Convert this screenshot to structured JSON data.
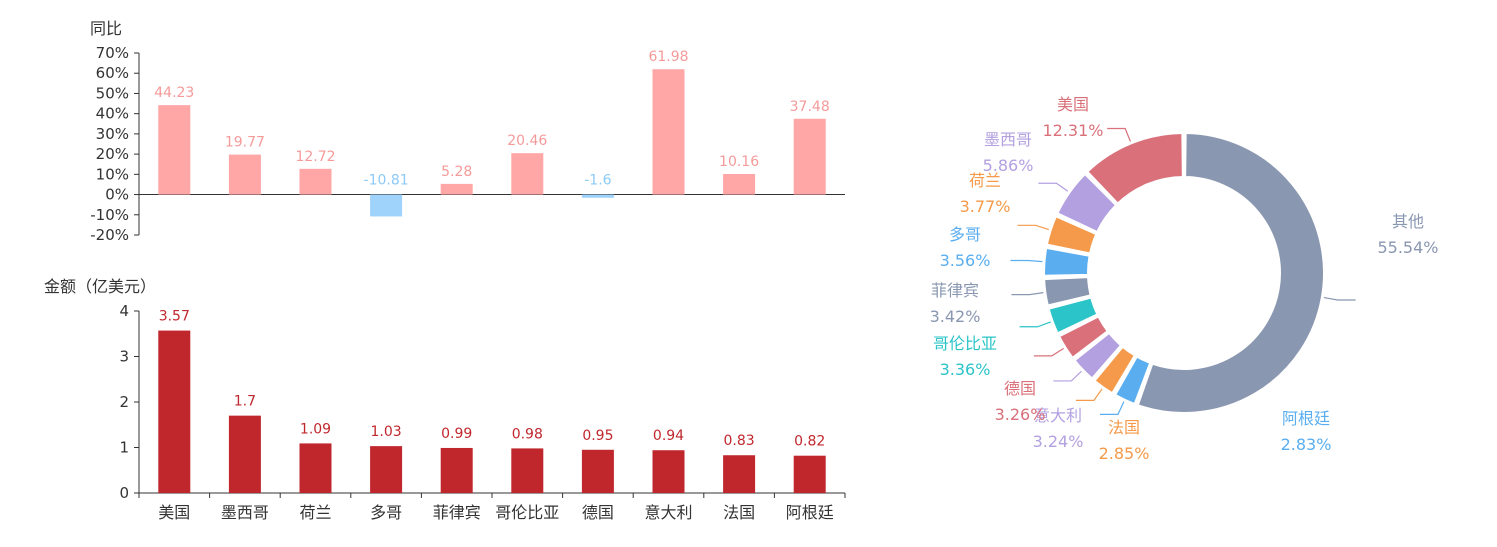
{
  "chart_data": [
    {
      "type": "bar",
      "ylabel": "同比",
      "y_tick_labels": [
        "70%",
        "60%",
        "50%",
        "40%",
        "30%",
        "20%",
        "10%",
        "0%",
        "-10%",
        "-20%"
      ],
      "ylim": [
        -20,
        70
      ],
      "categories": [
        "美国",
        "墨西哥",
        "荷兰",
        "多哥",
        "菲律宾",
        "哥伦比亚",
        "德国",
        "意大利",
        "法国",
        "阿根廷"
      ],
      "values": [
        44.23,
        19.77,
        12.72,
        -10.81,
        5.28,
        20.46,
        -1.6,
        61.98,
        10.16,
        37.48
      ],
      "data_labels": [
        "44.23",
        "19.77",
        "12.72",
        "-10.81",
        "5.28",
        "20.46",
        "-1.6",
        "61.98",
        "10.16",
        "37.48"
      ],
      "colors": {
        "positive": "#ffa6a6",
        "negative": "#9fd3fb",
        "positive_label": "#f59a9a",
        "negative_label": "#8ccaf7"
      },
      "grid": false
    },
    {
      "type": "bar",
      "ylabel": "金额（亿美元）",
      "y_tick_labels": [
        "4",
        "3",
        "2",
        "1",
        "0"
      ],
      "ylim": [
        0,
        4
      ],
      "categories": [
        "美国",
        "墨西哥",
        "荷兰",
        "多哥",
        "菲律宾",
        "哥伦比亚",
        "德国",
        "意大利",
        "法国",
        "阿根廷"
      ],
      "values": [
        3.57,
        1.7,
        1.09,
        1.03,
        0.99,
        0.98,
        0.95,
        0.94,
        0.83,
        0.82
      ],
      "data_labels": [
        "3.57",
        "1.7",
        "1.09",
        "1.03",
        "0.99",
        "0.98",
        "0.95",
        "0.94",
        "0.83",
        "0.82"
      ],
      "colors": {
        "bar": "#c0272d",
        "label": "#c0272d"
      },
      "grid": false
    },
    {
      "type": "pie",
      "donut": true,
      "slices": [
        {
          "name": "其他",
          "percent_label": "55.54%",
          "value": 55.54,
          "color": "#8a97b1"
        },
        {
          "name": "阿根廷",
          "percent_label": "2.83%",
          "value": 2.83,
          "color": "#5aaef0"
        },
        {
          "name": "法国",
          "percent_label": "2.85%",
          "value": 2.85,
          "color": "#f49a4a"
        },
        {
          "name": "意大利",
          "percent_label": "3.24%",
          "value": 3.24,
          "color": "#b3a0e0"
        },
        {
          "name": "德国",
          "percent_label": "3.26%",
          "value": 3.26,
          "color": "#d9707a"
        },
        {
          "name": "哥伦比亚",
          "percent_label": "3.36%",
          "value": 3.36,
          "color": "#2bc4c8"
        },
        {
          "name": "菲律宾",
          "percent_label": "3.42%",
          "value": 3.42,
          "color": "#8a97b1"
        },
        {
          "name": "多哥",
          "percent_label": "3.56%",
          "value": 3.56,
          "color": "#5aaef0"
        },
        {
          "name": "荷兰",
          "percent_label": "3.77%",
          "value": 3.77,
          "color": "#f49a4a"
        },
        {
          "name": "墨西哥",
          "percent_label": "5.86%",
          "value": 5.86,
          "color": "#b3a0e0"
        },
        {
          "name": "美国",
          "percent_label": "12.31%",
          "value": 12.31,
          "color": "#d9707a"
        }
      ]
    }
  ]
}
